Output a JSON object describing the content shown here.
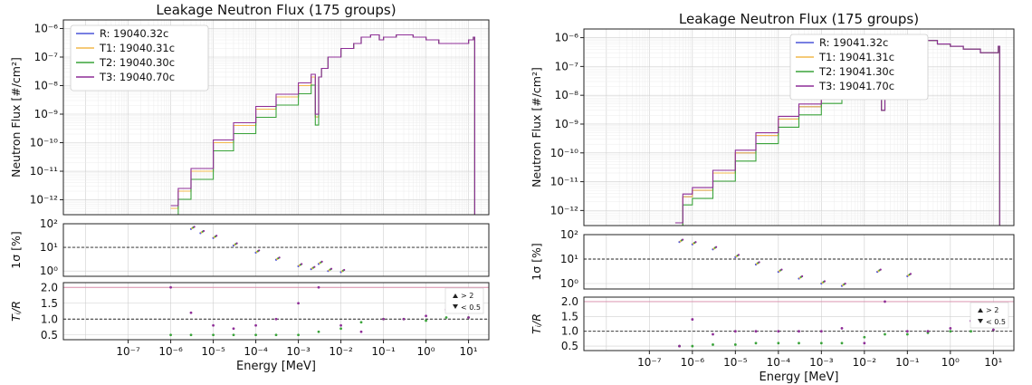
{
  "figures": [
    {
      "title": "Leakage Neutron Flux (175 groups)",
      "main_ylabel": "Neutron Flux [#/cm²]",
      "sigma_ylabel": "1σ [%]",
      "ratio_ylabel": "Tᵢ/R",
      "xlabel": "Energy [MeV]"
    },
    {
      "title": "Leakage Neutron Flux (175 groups)",
      "main_ylabel": "Neutron Flux [#/cm²]",
      "sigma_ylabel": "1σ [%]",
      "ratio_ylabel": "Tᵢ/R",
      "xlabel": "Energy [MeV]"
    }
  ],
  "chart_data": [
    {
      "type": "line",
      "title": "Leakage Neutron Flux (175 groups)",
      "xlabel": "Energy [MeV]",
      "ylabel": "Neutron Flux [#/cm²]",
      "xscale": "log",
      "yscale": "log",
      "xlim": [
        3e-09,
        30
      ],
      "ylim": [
        3e-13,
        2e-06
      ],
      "x_ticks": [
        "10⁻⁷",
        "10⁻⁶",
        "10⁻⁵",
        "10⁻⁴",
        "10⁻³",
        "10⁻²",
        "10⁻¹",
        "10⁰",
        "10¹"
      ],
      "y_ticks": [
        "10⁻¹²",
        "10⁻¹¹",
        "10⁻¹⁰",
        "10⁻⁹",
        "10⁻⁸",
        "10⁻⁷",
        "10⁻⁶"
      ],
      "grid": true,
      "legend_position": "top-left",
      "series": [
        {
          "name": "R: 19040.32c",
          "color": "#4c55d9",
          "lo": 0,
          "hi": 0,
          "x": [
            1e-06,
            1.5e-06,
            3e-06,
            1e-05,
            3e-05,
            0.0001,
            0.0003,
            0.001,
            0.002,
            0.0025,
            0.003,
            0.0035,
            0.005,
            0.01,
            0.02,
            0.03,
            0.05,
            0.08,
            0.1,
            0.2,
            0.5,
            1,
            2,
            5,
            10,
            13,
            14
          ],
          "y": [
            5e-13,
            2e-12,
            1e-11,
            1e-10,
            4e-10,
            1.5e-09,
            4e-09,
            1e-08,
            2e-08,
            8e-10,
            2e-08,
            4e-08,
            1e-07,
            2e-07,
            3e-07,
            5e-07,
            6e-07,
            4e-07,
            5e-07,
            6e-07,
            5e-07,
            4e-07,
            3e-07,
            3e-07,
            4e-07,
            5e-07,
            3e-13
          ]
        },
        {
          "name": "T1: 19040.31c",
          "color": "#f2b84b",
          "lo": 0.8,
          "hi": 1.15,
          "x": [
            1e-06,
            1.5e-06,
            3e-06,
            1e-05,
            3e-05,
            0.0001,
            0.0003,
            0.001,
            0.002,
            0.0025,
            0.003,
            0.0035,
            0.005,
            0.01,
            0.02,
            0.03,
            0.05,
            0.08,
            0.1,
            0.2,
            0.5,
            1,
            2,
            5,
            10,
            13,
            14
          ],
          "y": [
            5e-13,
            2e-12,
            1e-11,
            1e-10,
            4e-10,
            1.5e-09,
            4e-09,
            1e-08,
            2e-08,
            8e-10,
            2e-08,
            4e-08,
            1e-07,
            2e-07,
            3e-07,
            5e-07,
            6e-07,
            4e-07,
            5e-07,
            6e-07,
            5e-07,
            4e-07,
            3e-07,
            3e-07,
            4e-07,
            5e-07,
            3e-13
          ]
        },
        {
          "name": "T2: 19040.30c",
          "color": "#3aa33a",
          "lo": 0.5,
          "hi": 0.85,
          "x": [
            1e-06,
            1.5e-06,
            3e-06,
            1e-05,
            3e-05,
            0.0001,
            0.0003,
            0.001,
            0.002,
            0.0025,
            0.003,
            0.0035,
            0.005,
            0.01,
            0.02,
            0.03,
            0.05,
            0.08,
            0.1,
            0.2,
            0.5,
            1,
            2,
            5,
            10,
            13,
            14
          ],
          "y": [
            5e-13,
            2e-12,
            1e-11,
            1e-10,
            4e-10,
            1.5e-09,
            4e-09,
            1e-08,
            2e-08,
            8e-10,
            2e-08,
            4e-08,
            1e-07,
            2e-07,
            3e-07,
            5e-07,
            6e-07,
            4e-07,
            5e-07,
            6e-07,
            5e-07,
            4e-07,
            3e-07,
            3e-07,
            4e-07,
            5e-07,
            3e-13
          ]
        },
        {
          "name": "T3: 19040.70c",
          "color": "#8e2d97",
          "lo": 0.9,
          "hi": 1.2,
          "x": [
            1e-06,
            1.5e-06,
            3e-06,
            1e-05,
            3e-05,
            0.0001,
            0.0003,
            0.001,
            0.002,
            0.0025,
            0.003,
            0.0035,
            0.005,
            0.01,
            0.02,
            0.03,
            0.05,
            0.08,
            0.1,
            0.2,
            0.5,
            1,
            2,
            5,
            10,
            13,
            14
          ],
          "y": [
            5e-13,
            2e-12,
            1e-11,
            1e-10,
            4e-10,
            1.5e-09,
            4e-09,
            1e-08,
            2e-08,
            8e-10,
            2e-08,
            4e-08,
            1e-07,
            2e-07,
            3e-07,
            5e-07,
            6e-07,
            4e-07,
            5e-07,
            6e-07,
            5e-07,
            4e-07,
            3e-07,
            3e-07,
            4e-07,
            5e-07,
            3e-13
          ]
        }
      ],
      "sigma_panel": {
        "ylabel": "1σ [%]",
        "yscale": "log",
        "ylim": [
          0.6,
          100
        ],
        "y_ticks": [
          "10⁰",
          "10¹",
          "10²"
        ],
        "reference_line": 10,
        "x": [
          3e-06,
          5e-06,
          1e-05,
          3e-05,
          0.0001,
          0.0003,
          0.001,
          0.002,
          0.003,
          0.005,
          0.01
        ],
        "values": [
          60,
          40,
          25,
          12,
          6,
          3,
          1.6,
          1.2,
          2,
          1,
          0.9
        ]
      },
      "ratio_panel": {
        "ylabel": "Tᵢ/R",
        "ylim": [
          0.35,
          2.15
        ],
        "y_ticks": [
          "0.5",
          "1.0",
          "1.5",
          "2.0"
        ],
        "reference_line": 1.0,
        "legend": [
          "> 2",
          "< 0.5"
        ],
        "series": [
          {
            "name": "T2: 19040.30c",
            "color": "#3aa33a",
            "x": [
              1e-06,
              3e-06,
              1e-05,
              3e-05,
              0.0001,
              0.0003,
              0.001,
              0.003,
              0.01,
              0.03,
              0.1,
              0.3,
              1,
              3,
              10
            ],
            "values": [
              0.5,
              0.5,
              0.5,
              0.5,
              0.5,
              0.5,
              0.5,
              0.6,
              0.7,
              0.9,
              1.0,
              1.0,
              0.95,
              1.05,
              1.05
            ]
          },
          {
            "name": "T3: 19040.70c",
            "color": "#8e2d97",
            "x": [
              1e-06,
              3e-06,
              1e-05,
              3e-05,
              0.0001,
              0.0003,
              0.001,
              0.003,
              0.01,
              0.03,
              0.1,
              0.3,
              1,
              3,
              10
            ],
            "values": [
              2.0,
              1.2,
              0.8,
              0.7,
              0.8,
              1.0,
              1.5,
              2.0,
              0.8,
              0.6,
              1.0,
              1.0,
              1.1,
              1.3,
              1.05
            ]
          }
        ]
      }
    },
    {
      "type": "line",
      "title": "Leakage Neutron Flux (175 groups)",
      "xlabel": "Energy [MeV]",
      "ylabel": "Neutron Flux [#/cm²]",
      "xscale": "log",
      "yscale": "log",
      "xlim": [
        3e-09,
        30
      ],
      "ylim": [
        3e-13,
        2e-06
      ],
      "x_ticks": [
        "10⁻⁷",
        "10⁻⁶",
        "10⁻⁵",
        "10⁻⁴",
        "10⁻³",
        "10⁻²",
        "10⁻¹",
        "10⁰",
        "10¹"
      ],
      "y_ticks": [
        "10⁻¹²",
        "10⁻¹¹",
        "10⁻¹⁰",
        "10⁻⁹",
        "10⁻⁸",
        "10⁻⁷",
        "10⁻⁶"
      ],
      "grid": true,
      "legend_position": "top-right",
      "series": [
        {
          "name": "R: 19041.32c",
          "color": "#4c55d9",
          "lo": 0,
          "hi": 0,
          "x": [
            4e-07,
            6e-07,
            1e-06,
            3e-06,
            1e-05,
            3e-05,
            0.0001,
            0.0003,
            0.001,
            0.003,
            0.01,
            0.02,
            0.025,
            0.03,
            0.05,
            0.1,
            0.15,
            0.2,
            0.5,
            1,
            2,
            5,
            10,
            13,
            14
          ],
          "y": [
            3e-13,
            3e-12,
            5e-12,
            2e-11,
            1e-10,
            4e-10,
            1.5e-09,
            4e-09,
            1e-08,
            3e-08,
            1e-07,
            2e-07,
            3e-09,
            3e-07,
            5e-07,
            1e-06,
            1e-07,
            8e-07,
            6e-07,
            5e-07,
            4e-07,
            3e-07,
            3e-07,
            5e-07,
            3e-13
          ]
        },
        {
          "name": "T1: 19041.31c",
          "color": "#f2b84b",
          "lo": 0.8,
          "hi": 1.15,
          "x": [
            4e-07,
            6e-07,
            1e-06,
            3e-06,
            1e-05,
            3e-05,
            0.0001,
            0.0003,
            0.001,
            0.003,
            0.01,
            0.02,
            0.025,
            0.03,
            0.05,
            0.1,
            0.15,
            0.2,
            0.5,
            1,
            2,
            5,
            10,
            13,
            14
          ],
          "y": [
            3e-13,
            3e-12,
            5e-12,
            2e-11,
            1e-10,
            4e-10,
            1.5e-09,
            4e-09,
            1e-08,
            3e-08,
            1e-07,
            2e-07,
            3e-09,
            3e-07,
            5e-07,
            1e-06,
            1e-07,
            8e-07,
            6e-07,
            5e-07,
            4e-07,
            3e-07,
            3e-07,
            5e-07,
            3e-13
          ]
        },
        {
          "name": "T2: 19041.30c",
          "color": "#3aa33a",
          "lo": 0.6,
          "hi": 0.95,
          "x": [
            4e-07,
            6e-07,
            1e-06,
            3e-06,
            1e-05,
            3e-05,
            0.0001,
            0.0003,
            0.001,
            0.003,
            0.01,
            0.02,
            0.025,
            0.03,
            0.05,
            0.1,
            0.15,
            0.2,
            0.5,
            1,
            2,
            5,
            10,
            13,
            14
          ],
          "y": [
            3e-13,
            3e-12,
            5e-12,
            2e-11,
            1e-10,
            4e-10,
            1.5e-09,
            4e-09,
            1e-08,
            3e-08,
            1e-07,
            2e-07,
            3e-09,
            3e-07,
            5e-07,
            1e-06,
            1e-07,
            8e-07,
            6e-07,
            5e-07,
            4e-07,
            3e-07,
            3e-07,
            5e-07,
            3e-13
          ]
        },
        {
          "name": "T3: 19041.70c",
          "color": "#8e2d97",
          "lo": 0.9,
          "hi": 1.2,
          "x": [
            4e-07,
            6e-07,
            1e-06,
            3e-06,
            1e-05,
            3e-05,
            0.0001,
            0.0003,
            0.001,
            0.003,
            0.01,
            0.02,
            0.025,
            0.03,
            0.05,
            0.1,
            0.15,
            0.2,
            0.5,
            1,
            2,
            5,
            10,
            13,
            14
          ],
          "y": [
            3e-13,
            3e-12,
            5e-12,
            2e-11,
            1e-10,
            4e-10,
            1.5e-09,
            4e-09,
            1e-08,
            3e-08,
            1e-07,
            2e-07,
            3e-09,
            3e-07,
            5e-07,
            1e-06,
            1e-07,
            8e-07,
            6e-07,
            5e-07,
            4e-07,
            3e-07,
            3e-07,
            5e-07,
            3e-13
          ]
        }
      ],
      "sigma_panel": {
        "ylabel": "1σ [%]",
        "yscale": "log",
        "ylim": [
          0.6,
          100
        ],
        "y_ticks": [
          "10⁰",
          "10¹",
          "10²"
        ],
        "reference_line": 10,
        "x": [
          5e-07,
          1e-06,
          3e-06,
          1e-05,
          3e-05,
          0.0001,
          0.0003,
          0.001,
          0.003,
          0.02,
          0.1
        ],
        "values": [
          50,
          40,
          25,
          12,
          6,
          3,
          1.6,
          1,
          0.8,
          3,
          2
        ]
      },
      "ratio_panel": {
        "ylabel": "Tᵢ/R",
        "ylim": [
          0.35,
          2.15
        ],
        "y_ticks": [
          "0.5",
          "1.0",
          "1.5",
          "2.0"
        ],
        "reference_line": 1.0,
        "legend": [
          "> 2",
          "< 0.5"
        ],
        "series": [
          {
            "name": "T2: 19041.30c",
            "color": "#3aa33a",
            "x": [
              5e-07,
              1e-06,
              3e-06,
              1e-05,
              3e-05,
              0.0001,
              0.0003,
              0.001,
              0.003,
              0.01,
              0.03,
              0.1,
              0.3,
              1,
              3,
              10
            ],
            "values": [
              0.5,
              0.5,
              0.55,
              0.55,
              0.6,
              0.6,
              0.6,
              0.6,
              0.6,
              0.8,
              0.9,
              0.9,
              0.95,
              1.0,
              1.0,
              1.05
            ]
          },
          {
            "name": "T3: 19041.70c",
            "color": "#8e2d97",
            "x": [
              5e-07,
              1e-06,
              3e-06,
              1e-05,
              3e-05,
              0.0001,
              0.0003,
              0.001,
              0.003,
              0.01,
              0.03,
              0.1,
              0.3,
              1,
              3,
              10
            ],
            "values": [
              0.5,
              1.4,
              0.9,
              1.0,
              1.0,
              1.0,
              1.0,
              1.0,
              1.1,
              0.6,
              2.0,
              1.0,
              1.0,
              1.1,
              1.35,
              1.05
            ]
          }
        ]
      }
    }
  ]
}
